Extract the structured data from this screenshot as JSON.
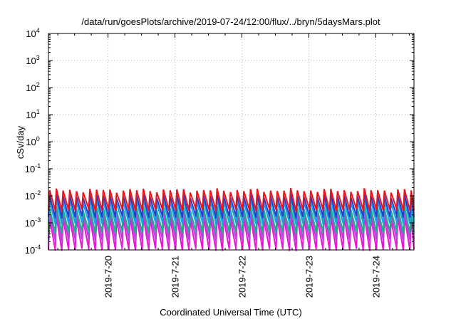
{
  "chart_data": {
    "type": "line",
    "title": "/data/run/goesPlots/archive/2019-07-24/12:00/flux/../bryn/5daysMars.plot",
    "xlabel": "Coordinated Universal Time (UTC)",
    "ylabel": "cSv/day",
    "y_scale": "log",
    "ylim": [
      0.0001,
      10000
    ],
    "y_ticks": [
      {
        "base": "10",
        "exp": "-4"
      },
      {
        "base": "10",
        "exp": "-3"
      },
      {
        "base": "10",
        "exp": "-2"
      },
      {
        "base": "10",
        "exp": "-1"
      },
      {
        "base": "10",
        "exp": "0"
      },
      {
        "base": "10",
        "exp": "1"
      },
      {
        "base": "10",
        "exp": "2"
      },
      {
        "base": "10",
        "exp": "3"
      },
      {
        "base": "10",
        "exp": "4"
      }
    ],
    "x_ticks": [
      "2019-7-20",
      "2019-7-21",
      "2019-7-22",
      "2019-7-23",
      "2019-7-24"
    ],
    "xlim_days": [
      19.11,
      24.57
    ],
    "tick_days": [
      20,
      21,
      22,
      23,
      24
    ],
    "grid": true,
    "sawtooth_period_days": 0.1,
    "series": [
      {
        "color": "#e8161b",
        "high": 0.016,
        "low": 0.004
      },
      {
        "color": "#2a3cc9",
        "high": 0.01,
        "low": 0.0022
      },
      {
        "color": "#1aa0e8",
        "high": 0.0065,
        "low": 0.0013
      },
      {
        "color": "#19b08a",
        "high": 0.0035,
        "low": 0.0006
      },
      {
        "color": "#b545d6",
        "high": 0.0025,
        "low": 0.00032
      },
      {
        "color": "#e817d6",
        "high": 0.0015,
        "low": 0.00014
      }
    ]
  }
}
